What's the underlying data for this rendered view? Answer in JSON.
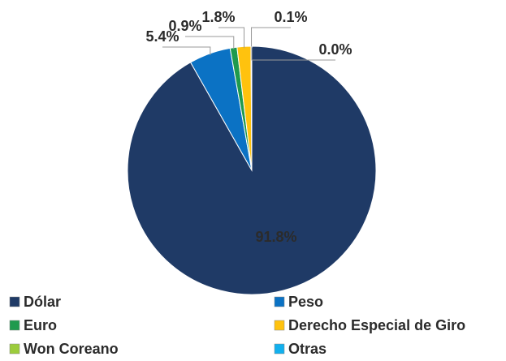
{
  "chart_data": {
    "type": "pie",
    "categories": [
      "Dólar",
      "Peso",
      "Euro",
      "Derecho Especial de Giro",
      "Won Coreano",
      "Otras"
    ],
    "values": [
      91.8,
      5.4,
      0.9,
      1.8,
      0.1,
      0.0
    ],
    "value_labels": [
      "91.8%",
      "5.4%",
      "0.9%",
      "1.8%",
      "0.1%",
      "0.0%"
    ],
    "colors": [
      "#1f3a66",
      "#0b72c4",
      "#1f9a4e",
      "#ffc20e",
      "#9ccc3c",
      "#12b0ee"
    ]
  }
}
